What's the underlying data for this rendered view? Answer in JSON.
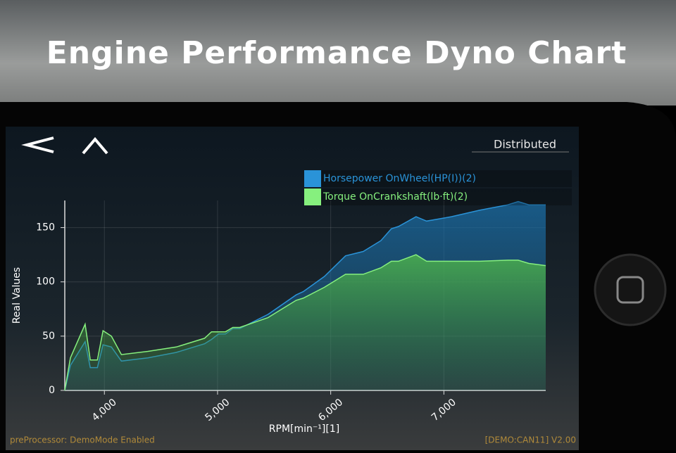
{
  "header": {
    "title": "Engine Performance Dyno Chart"
  },
  "toolbar": {
    "mode": "Distributed"
  },
  "status": {
    "left": "preProcessor: DemoMode Enabled",
    "right": "[DEMO:CAN11] V2.00"
  },
  "chart_data": {
    "type": "area",
    "x_label": "RPM[min⁻¹][1]",
    "y_label": "Real Values",
    "xlim": [
      3650,
      7900
    ],
    "ylim": [
      0,
      175
    ],
    "xticks": [
      {
        "value": 4000,
        "label": "4,000"
      },
      {
        "value": 5000,
        "label": "5,000"
      },
      {
        "value": 6000,
        "label": "6,000"
      },
      {
        "value": 7000,
        "label": "7,000"
      }
    ],
    "yticks": [
      0,
      50,
      100,
      150
    ],
    "grid": true,
    "legend": "top-right",
    "x": [
      3650,
      3700,
      3830,
      3875,
      3938,
      3988,
      4062,
      4150,
      4385,
      4635,
      4885,
      4947,
      5009,
      5070,
      5135,
      5196,
      5445,
      5695,
      5757,
      5944,
      6131,
      6287,
      6443,
      6536,
      6598,
      6754,
      6847,
      7065,
      7315,
      7564,
      7657,
      7751,
      7900
    ],
    "series": [
      {
        "name": "Horsepower OnWheel(HP(I))(2)",
        "color": "#2a93d8",
        "values": [
          0,
          23,
          45,
          21,
          21,
          42,
          40,
          27,
          30,
          35,
          43,
          47,
          52,
          52,
          57,
          57,
          70,
          88,
          91,
          105,
          124,
          128,
          138,
          149,
          151,
          160,
          156,
          160,
          166,
          171,
          174,
          171,
          171
        ]
      },
      {
        "name": "Torque OnCrankshaft(lb·ft)(2)",
        "color": "#86f07e",
        "values": [
          0,
          30,
          61,
          28,
          28,
          55,
          50,
          33,
          36,
          40,
          48,
          54,
          54,
          54,
          58,
          58,
          67,
          83,
          85,
          95,
          107,
          107,
          113,
          119,
          119,
          125,
          119,
          119,
          119,
          120,
          120,
          117,
          115
        ]
      }
    ]
  }
}
